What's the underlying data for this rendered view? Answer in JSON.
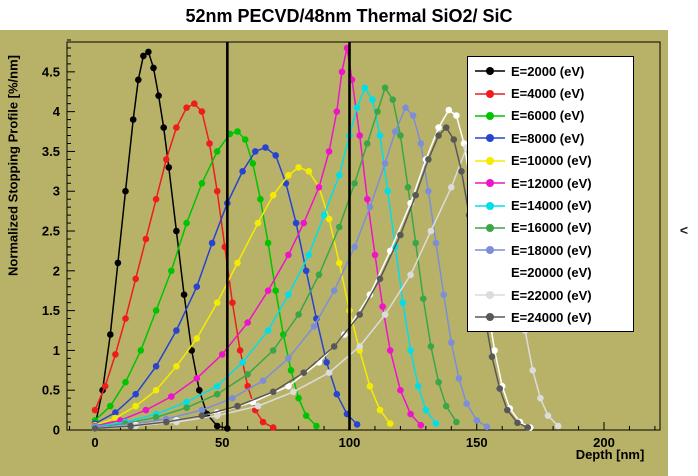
{
  "title": "52nm PECVD/48nm Thermal SiO2/ SiC",
  "panel_arrow": "<",
  "chart_data": {
    "type": "line",
    "title": "52nm PECVD/48nm Thermal SiO2/ SiC",
    "xlabel": "Depth [nm]",
    "ylabel": "Normalized Stopping Profile [%/nm]",
    "xlim": [
      -11,
      222
    ],
    "ylim": [
      0,
      4.875
    ],
    "x_ticks": [
      0,
      50,
      100,
      150,
      200
    ],
    "y_ticks": [
      0,
      0.5,
      1,
      1.5,
      2,
      2.5,
      3,
      3.5,
      4,
      4.5
    ],
    "x_minor_step": 10,
    "y_minor_step": 0.1,
    "layer_boundaries_nm": [
      52,
      100
    ],
    "legend_position": "top-right",
    "background_color": "#b8b269",
    "grid": false,
    "series": [
      {
        "label": "E=2000 (eV)",
        "color": "#000000",
        "points": [
          [
            0,
            0.05
          ],
          [
            3,
            0.5
          ],
          [
            6,
            1.2
          ],
          [
            9,
            2.1
          ],
          [
            12,
            3.0
          ],
          [
            15,
            3.9
          ],
          [
            17,
            4.4
          ],
          [
            19,
            4.7
          ],
          [
            21,
            4.75
          ],
          [
            23,
            4.55
          ],
          [
            25,
            4.2
          ],
          [
            27,
            3.8
          ],
          [
            29,
            3.3
          ],
          [
            32,
            2.5
          ],
          [
            35,
            1.7
          ],
          [
            38,
            1.0
          ],
          [
            41,
            0.5
          ],
          [
            44,
            0.2
          ],
          [
            48,
            0.05
          ],
          [
            52,
            0.02
          ]
        ]
      },
      {
        "label": "E=4000 (eV)",
        "color": "#ee1c1c",
        "points": [
          [
            0,
            0.25
          ],
          [
            4,
            0.55
          ],
          [
            8,
            0.95
          ],
          [
            12,
            1.4
          ],
          [
            16,
            1.9
          ],
          [
            20,
            2.4
          ],
          [
            24,
            2.9
          ],
          [
            28,
            3.4
          ],
          [
            32,
            3.8
          ],
          [
            36,
            4.05
          ],
          [
            39,
            4.1
          ],
          [
            42,
            4.0
          ],
          [
            45,
            3.6
          ],
          [
            48,
            3.0
          ],
          [
            51,
            2.3
          ],
          [
            54,
            1.6
          ],
          [
            57,
            1.0
          ],
          [
            60,
            0.55
          ],
          [
            63,
            0.25
          ],
          [
            66,
            0.1
          ],
          [
            70,
            0.03
          ]
        ]
      },
      {
        "label": "E=6000 (eV)",
        "color": "#00c400",
        "points": [
          [
            0,
            0.12
          ],
          [
            6,
            0.3
          ],
          [
            12,
            0.6
          ],
          [
            18,
            1.0
          ],
          [
            24,
            1.5
          ],
          [
            30,
            2.0
          ],
          [
            36,
            2.6
          ],
          [
            42,
            3.1
          ],
          [
            48,
            3.5
          ],
          [
            53,
            3.72
          ],
          [
            56,
            3.75
          ],
          [
            59,
            3.65
          ],
          [
            62,
            3.35
          ],
          [
            65,
            2.9
          ],
          [
            68,
            2.35
          ],
          [
            71,
            1.75
          ],
          [
            74,
            1.2
          ],
          [
            77,
            0.75
          ],
          [
            80,
            0.4
          ],
          [
            83,
            0.18
          ],
          [
            87,
            0.05
          ]
        ]
      },
      {
        "label": "E=8000 (eV)",
        "color": "#2743d0",
        "points": [
          [
            0,
            0.08
          ],
          [
            8,
            0.22
          ],
          [
            16,
            0.45
          ],
          [
            24,
            0.8
          ],
          [
            32,
            1.25
          ],
          [
            40,
            1.8
          ],
          [
            46,
            2.35
          ],
          [
            52,
            2.85
          ],
          [
            58,
            3.25
          ],
          [
            63,
            3.5
          ],
          [
            67,
            3.55
          ],
          [
            71,
            3.45
          ],
          [
            75,
            3.1
          ],
          [
            79,
            2.6
          ],
          [
            83,
            2.0
          ],
          [
            87,
            1.4
          ],
          [
            91,
            0.85
          ],
          [
            95,
            0.45
          ],
          [
            99,
            0.2
          ],
          [
            103,
            0.07
          ]
        ]
      },
      {
        "label": "E=10000 (eV)",
        "color": "#f4ec00",
        "points": [
          [
            0,
            0.06
          ],
          [
            8,
            0.15
          ],
          [
            16,
            0.3
          ],
          [
            24,
            0.5
          ],
          [
            32,
            0.8
          ],
          [
            40,
            1.15
          ],
          [
            48,
            1.6
          ],
          [
            56,
            2.1
          ],
          [
            64,
            2.6
          ],
          [
            70,
            2.95
          ],
          [
            76,
            3.2
          ],
          [
            80,
            3.3
          ],
          [
            84,
            3.25
          ],
          [
            88,
            3.05
          ],
          [
            92,
            2.65
          ],
          [
            96,
            2.1
          ],
          [
            100,
            1.5
          ],
          [
            104,
            1.0
          ],
          [
            108,
            0.55
          ],
          [
            112,
            0.25
          ],
          [
            116,
            0.08
          ]
        ]
      },
      {
        "label": "E=12000 (eV)",
        "color": "#ee14c8",
        "points": [
          [
            0,
            0.05
          ],
          [
            10,
            0.12
          ],
          [
            20,
            0.25
          ],
          [
            30,
            0.42
          ],
          [
            40,
            0.65
          ],
          [
            50,
            0.95
          ],
          [
            60,
            1.35
          ],
          [
            68,
            1.75
          ],
          [
            76,
            2.2
          ],
          [
            82,
            2.6
          ],
          [
            88,
            3.05
          ],
          [
            92,
            3.5
          ],
          [
            95,
            4.0
          ],
          [
            97,
            4.5
          ],
          [
            99,
            4.8
          ],
          [
            101,
            4.4
          ],
          [
            104,
            3.7
          ],
          [
            107,
            2.9
          ],
          [
            110,
            2.2
          ],
          [
            113,
            1.55
          ],
          [
            116,
            1.0
          ],
          [
            120,
            0.5
          ],
          [
            124,
            0.2
          ],
          [
            128,
            0.06
          ]
        ]
      },
      {
        "label": "E=14000 (eV)",
        "color": "#00dfe8",
        "points": [
          [
            0,
            0.04
          ],
          [
            12,
            0.1
          ],
          [
            24,
            0.2
          ],
          [
            36,
            0.35
          ],
          [
            48,
            0.55
          ],
          [
            58,
            0.85
          ],
          [
            68,
            1.25
          ],
          [
            76,
            1.7
          ],
          [
            84,
            2.2
          ],
          [
            90,
            2.7
          ],
          [
            96,
            3.2
          ],
          [
            100,
            3.7
          ],
          [
            103,
            4.05
          ],
          [
            106,
            4.3
          ],
          [
            109,
            4.15
          ],
          [
            112,
            3.7
          ],
          [
            115,
            3.0
          ],
          [
            118,
            2.3
          ],
          [
            121,
            1.6
          ],
          [
            124,
            1.0
          ],
          [
            127,
            0.55
          ],
          [
            130,
            0.25
          ],
          [
            134,
            0.08
          ]
        ]
      },
      {
        "label": "E=16000 (eV)",
        "color": "#3aa648",
        "points": [
          [
            0,
            0.03
          ],
          [
            12,
            0.08
          ],
          [
            24,
            0.16
          ],
          [
            36,
            0.28
          ],
          [
            48,
            0.45
          ],
          [
            60,
            0.7
          ],
          [
            70,
            1.0
          ],
          [
            80,
            1.45
          ],
          [
            88,
            1.95
          ],
          [
            96,
            2.55
          ],
          [
            102,
            3.1
          ],
          [
            107,
            3.6
          ],
          [
            111,
            4.0
          ],
          [
            114,
            4.3
          ],
          [
            117,
            4.15
          ],
          [
            120,
            3.7
          ],
          [
            123,
            3.05
          ],
          [
            126,
            2.35
          ],
          [
            129,
            1.65
          ],
          [
            132,
            1.05
          ],
          [
            135,
            0.6
          ],
          [
            138,
            0.3
          ],
          [
            142,
            0.1
          ]
        ]
      },
      {
        "label": "E=18000 (eV)",
        "color": "#7d8ed8",
        "points": [
          [
            0,
            0.03
          ],
          [
            14,
            0.07
          ],
          [
            28,
            0.14
          ],
          [
            42,
            0.25
          ],
          [
            54,
            0.4
          ],
          [
            66,
            0.62
          ],
          [
            76,
            0.9
          ],
          [
            86,
            1.3
          ],
          [
            94,
            1.75
          ],
          [
            102,
            2.3
          ],
          [
            108,
            2.8
          ],
          [
            114,
            3.35
          ],
          [
            118,
            3.75
          ],
          [
            122,
            4.05
          ],
          [
            125,
            3.95
          ],
          [
            128,
            3.6
          ],
          [
            131,
            3.0
          ],
          [
            134,
            2.35
          ],
          [
            137,
            1.7
          ],
          [
            140,
            1.1
          ],
          [
            143,
            0.65
          ],
          [
            146,
            0.33
          ],
          [
            150,
            0.12
          ],
          [
            154,
            0.04
          ]
        ]
      },
      {
        "label": "E=20000 (eV)",
        "color": "#ffffff",
        "points": [
          [
            0,
            0.02
          ],
          [
            16,
            0.06
          ],
          [
            32,
            0.12
          ],
          [
            48,
            0.22
          ],
          [
            62,
            0.35
          ],
          [
            76,
            0.55
          ],
          [
            88,
            0.85
          ],
          [
            98,
            1.2
          ],
          [
            108,
            1.7
          ],
          [
            116,
            2.25
          ],
          [
            124,
            2.85
          ],
          [
            130,
            3.4
          ],
          [
            135,
            3.8
          ],
          [
            139,
            4.02
          ],
          [
            142,
            3.95
          ],
          [
            145,
            3.6
          ],
          [
            148,
            3.0
          ],
          [
            151,
            2.3
          ],
          [
            154,
            1.6
          ],
          [
            157,
            1.0
          ],
          [
            160,
            0.55
          ],
          [
            163,
            0.27
          ],
          [
            167,
            0.1
          ],
          [
            171,
            0.03
          ]
        ]
      },
      {
        "label": "E=22000 (eV)",
        "color": "#dcdcdc",
        "points": [
          [
            0,
            0.02
          ],
          [
            16,
            0.05
          ],
          [
            32,
            0.1
          ],
          [
            48,
            0.18
          ],
          [
            64,
            0.3
          ],
          [
            78,
            0.48
          ],
          [
            92,
            0.72
          ],
          [
            104,
            1.05
          ],
          [
            114,
            1.45
          ],
          [
            124,
            1.95
          ],
          [
            132,
            2.5
          ],
          [
            140,
            3.05
          ],
          [
            146,
            3.55
          ],
          [
            151,
            3.85
          ],
          [
            154,
            3.9
          ],
          [
            157,
            3.7
          ],
          [
            160,
            3.2
          ],
          [
            163,
            2.55
          ],
          [
            166,
            1.85
          ],
          [
            169,
            1.25
          ],
          [
            172,
            0.75
          ],
          [
            175,
            0.4
          ],
          [
            178,
            0.18
          ],
          [
            182,
            0.05
          ]
        ]
      },
      {
        "label": "E=24000 (eV)",
        "color": "#585858",
        "points": [
          [
            0,
            0.02
          ],
          [
            14,
            0.05
          ],
          [
            28,
            0.1
          ],
          [
            42,
            0.18
          ],
          [
            56,
            0.3
          ],
          [
            70,
            0.48
          ],
          [
            82,
            0.72
          ],
          [
            94,
            1.05
          ],
          [
            104,
            1.45
          ],
          [
            112,
            1.9
          ],
          [
            120,
            2.45
          ],
          [
            126,
            2.95
          ],
          [
            131,
            3.4
          ],
          [
            135,
            3.7
          ],
          [
            138,
            3.8
          ],
          [
            141,
            3.65
          ],
          [
            144,
            3.25
          ],
          [
            147,
            2.7
          ],
          [
            150,
            2.05
          ],
          [
            153,
            1.45
          ],
          [
            156,
            0.92
          ],
          [
            159,
            0.52
          ],
          [
            162,
            0.25
          ],
          [
            166,
            0.09
          ],
          [
            170,
            0.03
          ]
        ]
      }
    ]
  }
}
